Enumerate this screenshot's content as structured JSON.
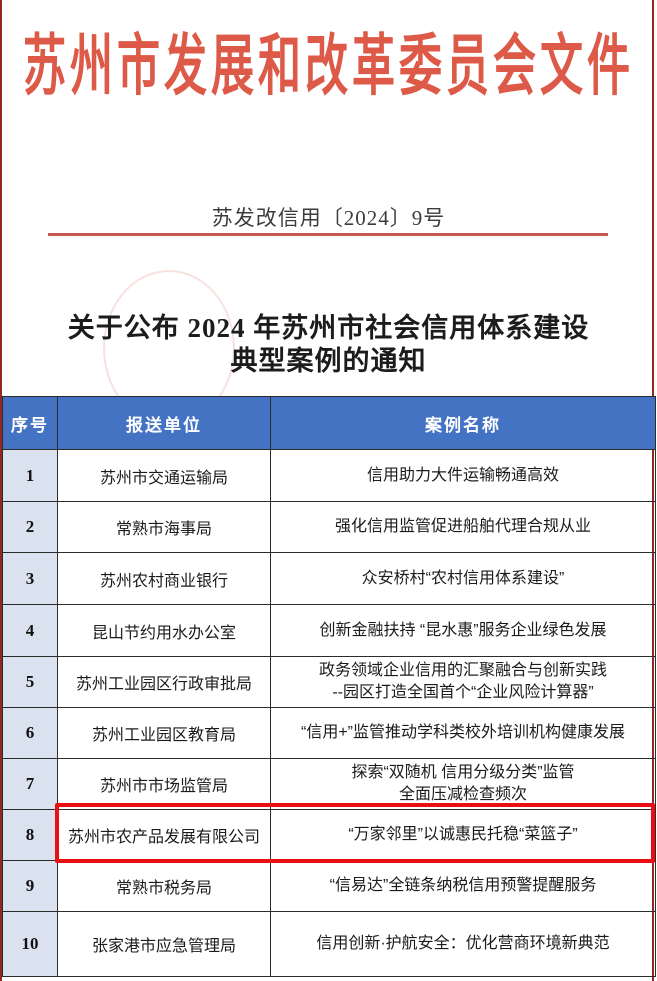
{
  "page": {
    "header_title": "苏州市发展和改革委员会文件",
    "doc_number": "苏发改信用〔2024〕9号",
    "title_line1": "关于公布 2024 年苏州市社会信用体系建设",
    "title_line2": "典型案例的通知"
  },
  "colors": {
    "masthead_red": "#de5a48",
    "rule_red": "#c4574e",
    "page_edge_red": "#8e2a22",
    "table_header_blue": "#4573c4",
    "index_column_blue": "#dbe2ef",
    "highlight_red": "#ea0d12"
  },
  "table": {
    "headers": [
      "序号",
      "报送单位",
      "案例名称"
    ],
    "rows": [
      {
        "no": "1",
        "unit": "苏州市交通运输局",
        "case": "信用助力大件运输畅通高效",
        "highlighted": false
      },
      {
        "no": "2",
        "unit": "常熟市海事局",
        "case": "强化信用监管促进船舶代理合规从业",
        "highlighted": false
      },
      {
        "no": "3",
        "unit": "苏州农村商业银行",
        "case": "众安桥村“农村信用体系建设”",
        "highlighted": false
      },
      {
        "no": "4",
        "unit": "昆山节约用水办公室",
        "case": "创新金融扶持 “昆水惠”服务企业绿色发展",
        "highlighted": false
      },
      {
        "no": "5",
        "unit": "苏州工业园区行政审批局",
        "case": "政务领域企业信用的汇聚融合与创新实践\n--园区打造全国首个“企业风险计算器”",
        "highlighted": false
      },
      {
        "no": "6",
        "unit": "苏州工业园区教育局",
        "case": "“信用+”监管推动学科类校外培训机构健康发展",
        "highlighted": false
      },
      {
        "no": "7",
        "unit": "苏州市市场监管局",
        "case": "探索“双随机 信用分级分类”监管\n全面压减检查频次",
        "highlighted": false
      },
      {
        "no": "8",
        "unit": "苏州市农产品发展有限公司",
        "case": "“万家邻里”以诚惠民托稳“菜篮子”",
        "highlighted": true
      },
      {
        "no": "9",
        "unit": "常熟市税务局",
        "case": "“信易达”全链条纳税信用预警提醒服务",
        "highlighted": false
      },
      {
        "no": "10",
        "unit": "张家港市应急管理局",
        "case": "信用创新·护航安全：优化营商环境新典范",
        "highlighted": false
      }
    ]
  }
}
